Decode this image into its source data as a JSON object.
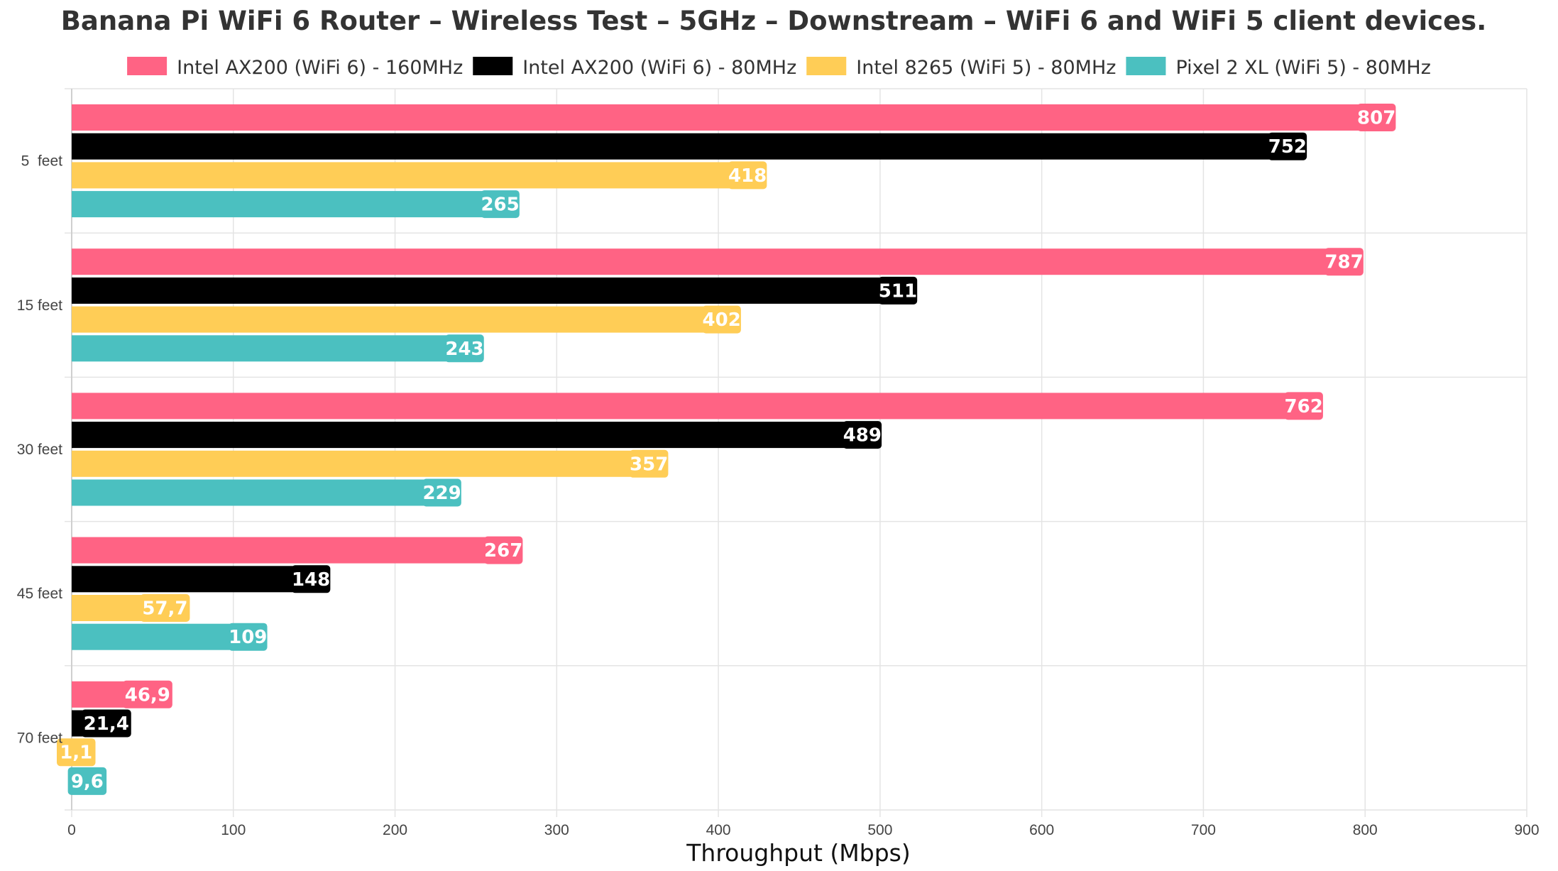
{
  "chart_data": {
    "type": "bar",
    "orientation": "horizontal",
    "title": "Banana Pi WiFi 6 Router – Wireless Test – 5GHz – Downstream – WiFi 6 and WiFi 5 client devices.",
    "xlabel": "Throughput (Mbps)",
    "ylabel": "",
    "xlim": [
      0,
      900
    ],
    "x_ticks": [
      "0",
      "100",
      "200",
      "300",
      "400",
      "500",
      "600",
      "700",
      "800",
      "900"
    ],
    "grid": true,
    "legend_position": "top",
    "categories": [
      "5  feet",
      "15 feet",
      "30 feet",
      "45 feet",
      "70 feet"
    ],
    "series": [
      {
        "name": "Intel AX200 (WiFi 6) - 160MHz",
        "color": "#ff6384",
        "values": [
          807,
          787,
          762,
          267,
          46.9
        ],
        "labels": [
          "807",
          "787",
          "762",
          "267",
          "46,9"
        ]
      },
      {
        "name": "Intel AX200 (WiFi 6) - 80MHz",
        "color": "#000000",
        "values": [
          752,
          511,
          489,
          148,
          21.4
        ],
        "labels": [
          "752",
          "511",
          "489",
          "148",
          "21,4"
        ]
      },
      {
        "name": "Intel 8265 (WiFi 5) - 80MHz",
        "color": "#ffcd56",
        "values": [
          418,
          402,
          357,
          57.7,
          1.1
        ],
        "labels": [
          "418",
          "402",
          "357",
          "57,7",
          "1,1"
        ]
      },
      {
        "name": "Pixel 2 XL (WiFi 5) - 80MHz",
        "color": "#4bc0c0",
        "values": [
          265,
          243,
          229,
          109,
          9.6
        ],
        "labels": [
          "265",
          "243",
          "229",
          "109",
          "9,6"
        ]
      }
    ]
  }
}
